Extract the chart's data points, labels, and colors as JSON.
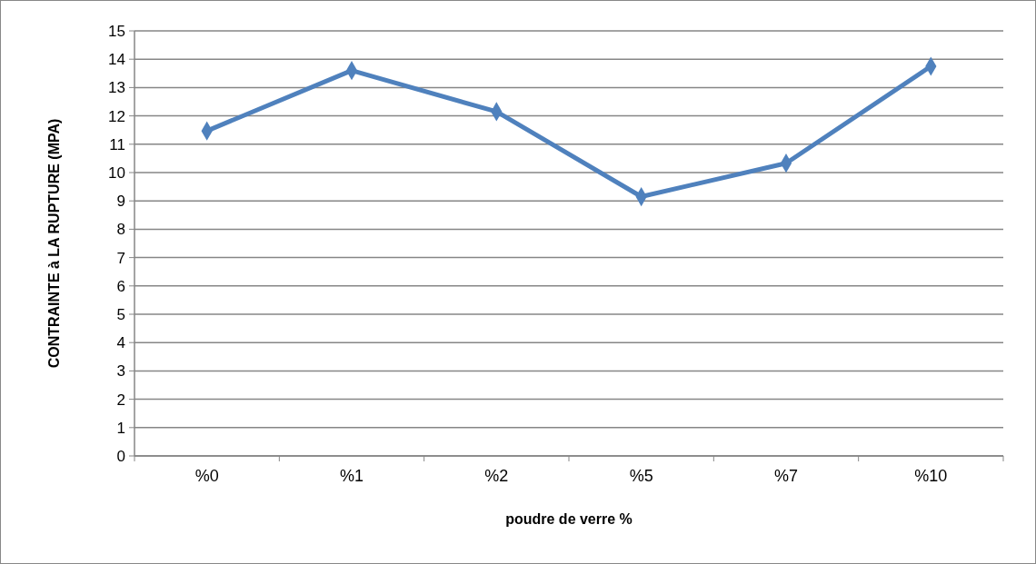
{
  "chart_data": {
    "type": "line",
    "xlabel": "poudre de verre %",
    "ylabel": "CONTRAINTE à LA RUPTURE (MPA)",
    "categories": [
      "%0",
      "%1",
      "%2",
      "%5",
      "%7",
      "%10"
    ],
    "series": [
      {
        "color": "#4f81bd",
        "values": [
          11.47,
          13.6,
          12.15,
          9.15,
          10.33,
          13.75
        ]
      }
    ],
    "ylim": [
      0,
      15
    ],
    "yticks": [
      0,
      1,
      2,
      3,
      4,
      5,
      6,
      7,
      8,
      9,
      10,
      11,
      12,
      13,
      14,
      15
    ],
    "grid": "y",
    "marker": "diamond"
  }
}
